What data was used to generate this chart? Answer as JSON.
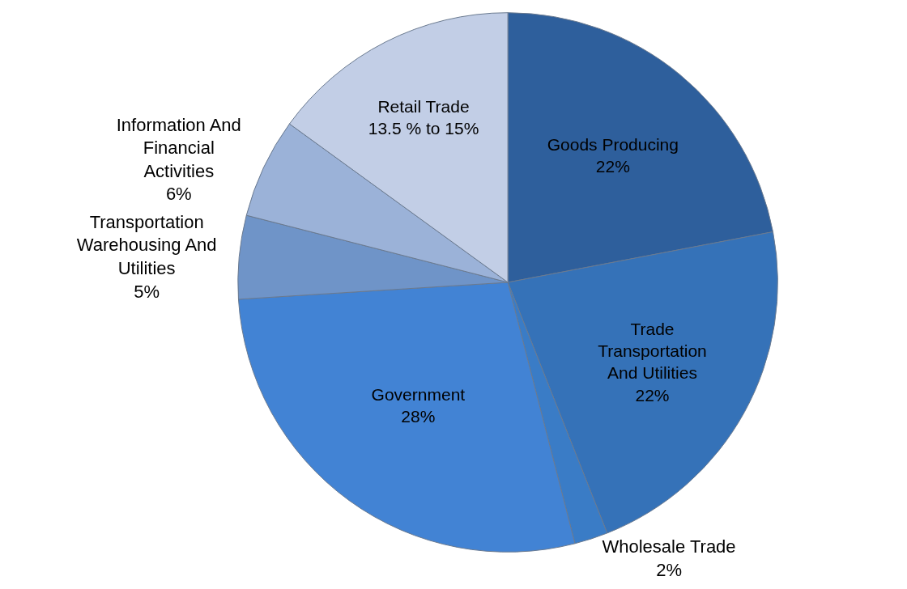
{
  "chart_data": {
    "type": "pie",
    "categories": [
      "Goods Producing",
      "Trade Transportation And Utilities",
      "Wholesale Trade",
      "Government",
      "Transportation Warehousing And Utilities",
      "Information And Financial Activities",
      "Retail Trade"
    ],
    "values": [
      22,
      22,
      2,
      28,
      5,
      6,
      15
    ],
    "value_labels": [
      "22%",
      "22%",
      "2%",
      "28%",
      "5%",
      "6%",
      "13.5 % to 15%"
    ],
    "colors": [
      "#2e5f9c",
      "#3572b8",
      "#3a7cc6",
      "#4283d4",
      "#6f94c8",
      "#9bb2d8",
      "#c2cee6"
    ]
  }
}
